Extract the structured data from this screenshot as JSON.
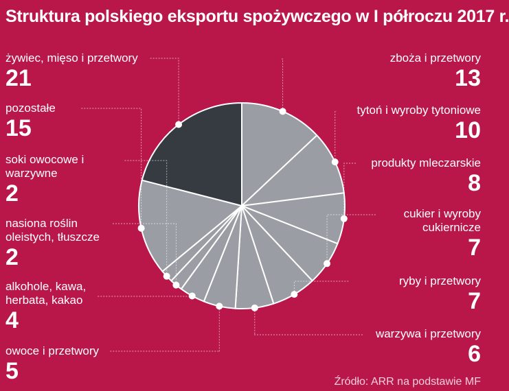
{
  "chart_data": {
    "type": "pie",
    "title": "Struktura polskiego eksportu spożywczego w I półroczu 2017 r.",
    "source": "Źródło: ARR na podstawie MF",
    "slices": [
      {
        "label": "zboża i przetwory",
        "value": 13
      },
      {
        "label": "tytoń i wyroby tytoniowe",
        "value": 10
      },
      {
        "label": "produkty mleczarskie",
        "value": 8
      },
      {
        "label": "cukier i wyroby cukiernicze",
        "value": 7
      },
      {
        "label": "ryby i przetwory",
        "value": 7
      },
      {
        "label": "warzywa i przetwory",
        "value": 6
      },
      {
        "label": "owoce i przetwory",
        "value": 5
      },
      {
        "label": "alkohole, kawa, herbata, kakao",
        "value": 4
      },
      {
        "label": "nasiona roślin oleistych, tłuszcze",
        "value": 2
      },
      {
        "label": "soki owocowe i warzywne",
        "value": 2
      },
      {
        "label": "pozostałe",
        "value": 15
      },
      {
        "label": "żywiec, mięso i przetwory",
        "value": 21
      }
    ],
    "colors": {
      "slice": "#9a9ea4",
      "highlight": "#363b42",
      "background": "#b9164a",
      "divider": "#ffffff"
    }
  }
}
